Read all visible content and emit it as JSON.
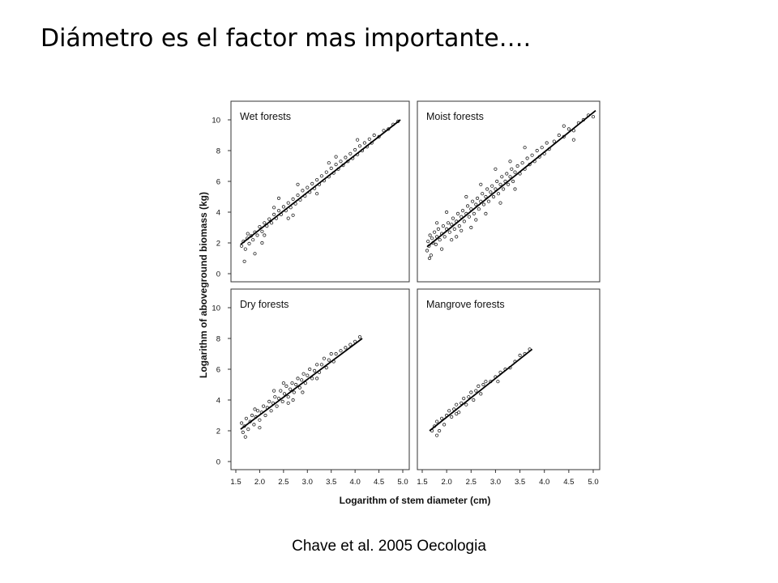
{
  "slide": {
    "title": "Diámetro es el factor mas importante….",
    "caption": "Chave et al. 2005 Oecologia"
  },
  "chart_data": {
    "type": "scatter",
    "xlabel": "Logarithm of stem diameter (cm)",
    "ylabel": "Logarithm of  aboveground biomass (kg)",
    "xlim": [
      1.5,
      5.0
    ],
    "ylim": [
      0,
      11
    ],
    "x_ticks": [
      "1.5",
      "2.0",
      "2.5",
      "3.0",
      "3.5",
      "4.0",
      "4.5",
      "5.0"
    ],
    "y_ticks": [
      "0",
      "2",
      "4",
      "6",
      "8",
      "10"
    ],
    "grid": false,
    "panels": [
      {
        "title": "Wet forests",
        "fit_line": {
          "x": [
            1.6,
            4.95
          ],
          "y": [
            1.9,
            10.0
          ]
        },
        "points": [
          [
            1.62,
            1.8
          ],
          [
            1.66,
            2.1
          ],
          [
            1.7,
            1.6
          ],
          [
            1.74,
            2.3
          ],
          [
            1.78,
            1.95
          ],
          [
            1.82,
            2.45
          ],
          [
            1.86,
            2.2
          ],
          [
            1.9,
            2.7
          ],
          [
            1.95,
            2.5
          ],
          [
            2.0,
            3.05
          ],
          [
            2.05,
            2.75
          ],
          [
            2.1,
            3.3
          ],
          [
            2.15,
            3.1
          ],
          [
            2.2,
            3.55
          ],
          [
            2.25,
            3.3
          ],
          [
            2.3,
            3.85
          ],
          [
            2.35,
            3.6
          ],
          [
            2.4,
            4.1
          ],
          [
            2.45,
            3.85
          ],
          [
            2.5,
            4.35
          ],
          [
            2.55,
            4.1
          ],
          [
            2.6,
            4.6
          ],
          [
            2.65,
            4.3
          ],
          [
            2.7,
            4.85
          ],
          [
            2.75,
            4.55
          ],
          [
            2.8,
            5.1
          ],
          [
            2.85,
            4.8
          ],
          [
            2.9,
            5.4
          ],
          [
            2.95,
            5.05
          ],
          [
            3.0,
            5.6
          ],
          [
            3.05,
            5.3
          ],
          [
            3.1,
            5.85
          ],
          [
            3.15,
            5.55
          ],
          [
            3.2,
            6.1
          ],
          [
            3.25,
            5.8
          ],
          [
            3.3,
            6.35
          ],
          [
            3.35,
            6.05
          ],
          [
            3.4,
            6.6
          ],
          [
            3.45,
            6.3
          ],
          [
            3.5,
            6.85
          ],
          [
            3.55,
            6.55
          ],
          [
            3.6,
            7.1
          ],
          [
            3.65,
            6.8
          ],
          [
            3.7,
            7.3
          ],
          [
            3.75,
            7.05
          ],
          [
            3.8,
            7.55
          ],
          [
            3.85,
            7.3
          ],
          [
            3.9,
            7.8
          ],
          [
            3.95,
            7.5
          ],
          [
            4.0,
            8.05
          ],
          [
            4.05,
            7.75
          ],
          [
            4.1,
            8.3
          ],
          [
            4.15,
            8.0
          ],
          [
            4.2,
            8.5
          ],
          [
            4.25,
            8.25
          ],
          [
            4.3,
            8.75
          ],
          [
            4.35,
            8.5
          ],
          [
            4.4,
            9.0
          ],
          [
            4.5,
            8.9
          ],
          [
            4.6,
            9.3
          ],
          [
            4.7,
            9.4
          ],
          [
            4.8,
            9.7
          ],
          [
            4.9,
            9.9
          ],
          [
            1.75,
            2.6
          ],
          [
            2.1,
            2.5
          ],
          [
            2.6,
            3.6
          ],
          [
            3.2,
            5.2
          ],
          [
            3.6,
            7.6
          ],
          [
            2.4,
            4.9
          ],
          [
            1.9,
            1.3
          ],
          [
            2.05,
            2.0
          ],
          [
            3.45,
            7.2
          ],
          [
            4.05,
            8.7
          ],
          [
            2.8,
            5.8
          ],
          [
            2.3,
            4.3
          ],
          [
            1.68,
            0.8
          ],
          [
            2.7,
            3.8
          ]
        ]
      },
      {
        "title": "Moist forests",
        "fit_line": {
          "x": [
            1.6,
            5.05
          ],
          "y": [
            1.75,
            10.6
          ]
        },
        "points": [
          [
            1.6,
            1.5
          ],
          [
            1.62,
            2.1
          ],
          [
            1.64,
            1.8
          ],
          [
            1.66,
            2.5
          ],
          [
            1.68,
            1.2
          ],
          [
            1.7,
            2.3
          ],
          [
            1.72,
            2.0
          ],
          [
            1.75,
            2.7
          ],
          [
            1.78,
            1.9
          ],
          [
            1.8,
            2.4
          ],
          [
            1.83,
            2.9
          ],
          [
            1.86,
            2.2
          ],
          [
            1.9,
            2.6
          ],
          [
            1.93,
            3.1
          ],
          [
            1.96,
            2.4
          ],
          [
            2.0,
            2.9
          ],
          [
            2.03,
            3.3
          ],
          [
            2.06,
            2.7
          ],
          [
            2.1,
            3.2
          ],
          [
            2.13,
            3.6
          ],
          [
            2.16,
            2.9
          ],
          [
            2.2,
            3.4
          ],
          [
            2.23,
            3.9
          ],
          [
            2.26,
            3.1
          ],
          [
            2.3,
            3.7
          ],
          [
            2.33,
            4.1
          ],
          [
            2.36,
            3.4
          ],
          [
            2.4,
            3.9
          ],
          [
            2.43,
            4.4
          ],
          [
            2.46,
            3.7
          ],
          [
            2.5,
            4.2
          ],
          [
            2.53,
            4.7
          ],
          [
            2.56,
            3.9
          ],
          [
            2.6,
            4.5
          ],
          [
            2.63,
            4.9
          ],
          [
            2.66,
            4.2
          ],
          [
            2.7,
            4.7
          ],
          [
            2.73,
            5.2
          ],
          [
            2.76,
            4.5
          ],
          [
            2.8,
            5.0
          ],
          [
            2.83,
            5.5
          ],
          [
            2.86,
            4.7
          ],
          [
            2.9,
            5.3
          ],
          [
            2.93,
            5.7
          ],
          [
            2.96,
            5.0
          ],
          [
            3.0,
            5.5
          ],
          [
            3.03,
            6.0
          ],
          [
            3.06,
            5.2
          ],
          [
            3.1,
            5.8
          ],
          [
            3.13,
            6.3
          ],
          [
            3.16,
            5.5
          ],
          [
            3.2,
            6.0
          ],
          [
            3.23,
            6.5
          ],
          [
            3.26,
            5.8
          ],
          [
            3.3,
            6.3
          ],
          [
            3.33,
            6.8
          ],
          [
            3.36,
            6.0
          ],
          [
            3.4,
            6.6
          ],
          [
            3.45,
            7.0
          ],
          [
            3.5,
            6.5
          ],
          [
            3.55,
            7.2
          ],
          [
            3.6,
            6.8
          ],
          [
            3.65,
            7.5
          ],
          [
            3.7,
            7.1
          ],
          [
            3.75,
            7.7
          ],
          [
            3.8,
            7.3
          ],
          [
            3.85,
            8.0
          ],
          [
            3.9,
            7.6
          ],
          [
            3.95,
            8.2
          ],
          [
            4.0,
            7.8
          ],
          [
            4.05,
            8.5
          ],
          [
            4.1,
            8.1
          ],
          [
            4.2,
            8.6
          ],
          [
            4.3,
            9.0
          ],
          [
            4.4,
            8.9
          ],
          [
            4.5,
            9.4
          ],
          [
            4.6,
            9.3
          ],
          [
            4.7,
            9.8
          ],
          [
            4.8,
            10.0
          ],
          [
            4.9,
            10.3
          ],
          [
            5.0,
            10.2
          ],
          [
            1.65,
            1.0
          ],
          [
            1.9,
            1.6
          ],
          [
            2.2,
            2.4
          ],
          [
            2.5,
            3.0
          ],
          [
            2.8,
            3.9
          ],
          [
            3.1,
            4.6
          ],
          [
            3.4,
            5.5
          ],
          [
            2.0,
            4.0
          ],
          [
            2.4,
            5.0
          ],
          [
            2.7,
            5.8
          ],
          [
            3.0,
            6.8
          ],
          [
            3.3,
            7.3
          ],
          [
            1.8,
            3.3
          ],
          [
            2.1,
            2.2
          ],
          [
            3.6,
            8.2
          ],
          [
            4.4,
            9.6
          ],
          [
            4.6,
            8.7
          ],
          [
            2.3,
            2.8
          ],
          [
            2.6,
            3.5
          ]
        ]
      },
      {
        "title": "Dry forests",
        "fit_line": {
          "x": [
            1.6,
            4.15
          ],
          "y": [
            2.1,
            8.0
          ]
        },
        "points": [
          [
            1.62,
            2.5
          ],
          [
            1.65,
            1.9
          ],
          [
            1.68,
            2.3
          ],
          [
            1.72,
            2.8
          ],
          [
            1.76,
            2.1
          ],
          [
            1.8,
            2.6
          ],
          [
            1.84,
            3.0
          ],
          [
            1.88,
            2.4
          ],
          [
            1.92,
            2.9
          ],
          [
            1.96,
            3.3
          ],
          [
            2.0,
            2.7
          ],
          [
            2.04,
            3.2
          ],
          [
            2.08,
            3.6
          ],
          [
            2.12,
            3.0
          ],
          [
            2.16,
            3.5
          ],
          [
            2.2,
            3.9
          ],
          [
            2.24,
            3.3
          ],
          [
            2.28,
            3.8
          ],
          [
            2.32,
            4.2
          ],
          [
            2.36,
            3.6
          ],
          [
            2.4,
            4.1
          ],
          [
            2.44,
            4.6
          ],
          [
            2.48,
            3.9
          ],
          [
            2.52,
            4.4
          ],
          [
            2.56,
            4.9
          ],
          [
            2.6,
            4.2
          ],
          [
            2.64,
            4.7
          ],
          [
            2.68,
            5.1
          ],
          [
            2.72,
            4.5
          ],
          [
            2.76,
            5.0
          ],
          [
            2.8,
            5.4
          ],
          [
            2.84,
            4.8
          ],
          [
            2.88,
            5.3
          ],
          [
            2.92,
            5.7
          ],
          [
            2.96,
            5.1
          ],
          [
            3.0,
            5.6
          ],
          [
            3.05,
            6.0
          ],
          [
            3.1,
            5.4
          ],
          [
            3.15,
            5.9
          ],
          [
            3.2,
            6.3
          ],
          [
            3.25,
            5.8
          ],
          [
            3.3,
            6.3
          ],
          [
            3.35,
            6.7
          ],
          [
            3.4,
            6.1
          ],
          [
            3.45,
            6.6
          ],
          [
            3.5,
            7.0
          ],
          [
            3.55,
            6.5
          ],
          [
            3.6,
            7.0
          ],
          [
            3.7,
            7.2
          ],
          [
            3.8,
            7.4
          ],
          [
            3.9,
            7.6
          ],
          [
            4.0,
            7.8
          ],
          [
            4.1,
            8.1
          ],
          [
            1.7,
            1.6
          ],
          [
            2.0,
            2.2
          ],
          [
            2.3,
            4.6
          ],
          [
            2.6,
            3.8
          ],
          [
            2.9,
            4.5
          ],
          [
            3.2,
            5.4
          ],
          [
            2.5,
            5.1
          ],
          [
            1.9,
            3.4
          ],
          [
            2.7,
            4.0
          ]
        ]
      },
      {
        "title": "Mangrove forests",
        "fit_line": {
          "x": [
            1.65,
            3.75
          ],
          "y": [
            2.0,
            7.3
          ]
        },
        "points": [
          [
            1.7,
            2.0
          ],
          [
            1.75,
            2.3
          ],
          [
            1.8,
            2.6
          ],
          [
            1.85,
            2.0
          ],
          [
            1.9,
            2.8
          ],
          [
            1.95,
            2.4
          ],
          [
            2.0,
            3.0
          ],
          [
            2.05,
            3.3
          ],
          [
            2.1,
            2.9
          ],
          [
            2.15,
            3.4
          ],
          [
            2.2,
            3.7
          ],
          [
            2.25,
            3.2
          ],
          [
            2.3,
            3.8
          ],
          [
            2.35,
            4.1
          ],
          [
            2.4,
            3.7
          ],
          [
            2.45,
            4.2
          ],
          [
            2.5,
            4.5
          ],
          [
            2.55,
            4.0
          ],
          [
            2.6,
            4.6
          ],
          [
            2.65,
            4.9
          ],
          [
            2.7,
            4.4
          ],
          [
            2.75,
            5.0
          ],
          [
            2.8,
            5.2
          ],
          [
            2.9,
            5.2
          ],
          [
            3.0,
            5.5
          ],
          [
            3.05,
            5.2
          ],
          [
            3.1,
            5.8
          ],
          [
            3.2,
            6.0
          ],
          [
            3.3,
            6.1
          ],
          [
            3.4,
            6.5
          ],
          [
            3.5,
            6.9
          ],
          [
            3.6,
            7.0
          ],
          [
            3.7,
            7.3
          ],
          [
            1.8,
            1.7
          ],
          [
            2.2,
            3.1
          ]
        ]
      }
    ]
  }
}
